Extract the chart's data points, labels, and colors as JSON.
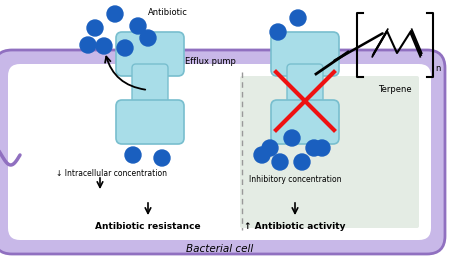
{
  "bg_color": "#ffffff",
  "cell_fill_outer": "#c8b8e8",
  "cell_fill_inner": "#ffffff",
  "cell_edge": "#9070c0",
  "right_fill": "#e4ece4",
  "pump_fill": "#a8dde8",
  "pump_edge": "#78bece",
  "dot_color": "#1a5fbf",
  "red_x_color": "#ee1111",
  "dashed_line_color": "#999999",
  "title": "Bacterial cell",
  "label_antibiotic": "Antibiotic",
  "label_efflux": "Efflux pump",
  "label_intracellular": "↓ Intracellular concentration",
  "label_resistance": "Antibiotic resistance",
  "label_inhibitory": "Inhibitory concentration",
  "label_activity": "↑ Antibiotic activity",
  "label_terpene": "Terpene",
  "figsize": [
    4.74,
    2.59
  ],
  "dpi": 100
}
